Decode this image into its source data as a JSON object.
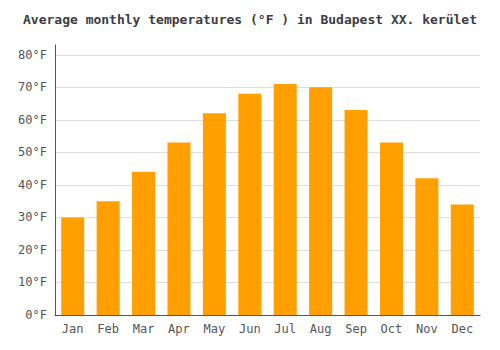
{
  "chart_data": {
    "type": "bar",
    "title": "Average monthly temperatures (°F ) in Budapest XX. kerület",
    "categories": [
      "Jan",
      "Feb",
      "Mar",
      "Apr",
      "May",
      "Jun",
      "Jul",
      "Aug",
      "Sep",
      "Oct",
      "Nov",
      "Dec"
    ],
    "values": [
      30,
      35,
      44,
      53,
      62,
      68,
      71,
      70,
      63,
      53,
      42,
      34
    ],
    "color": "#FFA000",
    "ylim": [
      0,
      83
    ],
    "yticks": [
      {
        "value": 0,
        "label": "0°F"
      },
      {
        "value": 10,
        "label": "10°F"
      },
      {
        "value": 20,
        "label": "20°F"
      },
      {
        "value": 30,
        "label": "30°F"
      },
      {
        "value": 40,
        "label": "40°F"
      },
      {
        "value": 50,
        "label": "50°F"
      },
      {
        "value": 60,
        "label": "60°F"
      },
      {
        "value": 70,
        "label": "70°F"
      },
      {
        "value": 80,
        "label": "80°F"
      }
    ],
    "grid": true
  }
}
